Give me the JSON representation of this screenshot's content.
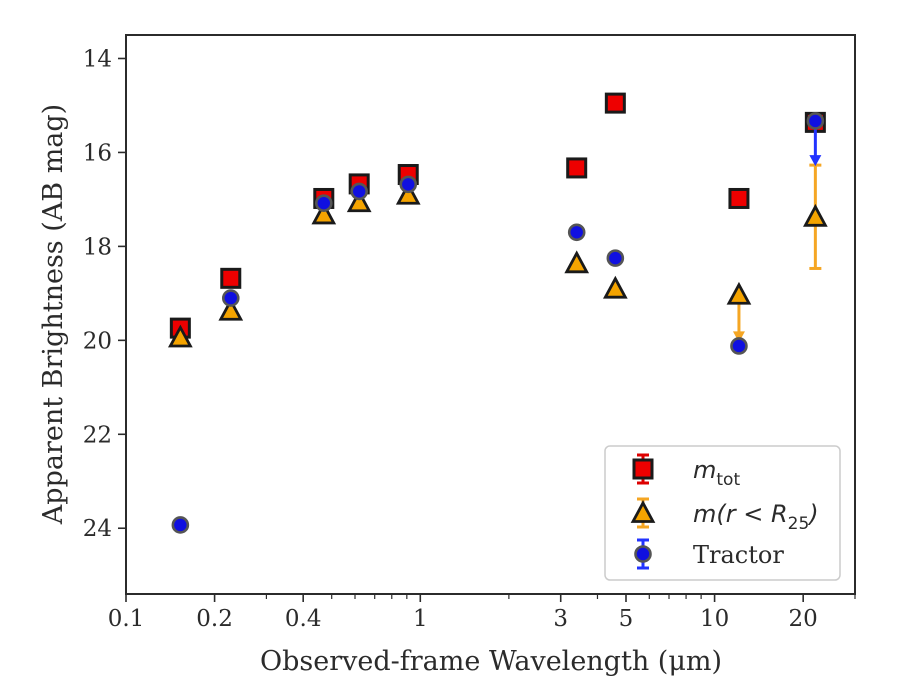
{
  "chart_data": {
    "type": "scatter",
    "xlabel": "Observed-frame Wavelength (μm)",
    "ylabel": "Apparent Brightness (AB mag)",
    "xscale": "log",
    "xlim": [
      0.1,
      30
    ],
    "ylim": [
      25.4,
      13.5
    ],
    "y_inverted": true,
    "xticks": [
      {
        "value": 0.1,
        "label": "0.1"
      },
      {
        "value": 0.2,
        "label": "0.2"
      },
      {
        "value": 0.4,
        "label": "0.4"
      },
      {
        "value": 1,
        "label": "1"
      },
      {
        "value": 3,
        "label": "3"
      },
      {
        "value": 5,
        "label": "5"
      },
      {
        "value": 10,
        "label": "10"
      },
      {
        "value": 20,
        "label": "20"
      }
    ],
    "yticks": [
      {
        "value": 14,
        "label": "14"
      },
      {
        "value": 16,
        "label": "16"
      },
      {
        "value": 18,
        "label": "18"
      },
      {
        "value": 20,
        "label": "20"
      },
      {
        "value": 22,
        "label": "22"
      },
      {
        "value": 24,
        "label": "24"
      }
    ],
    "grid": false,
    "legend_position": "lower-right",
    "series": [
      {
        "name": "m_tot",
        "legend": {
          "italic": "m",
          "sub": "tot"
        },
        "marker": "square",
        "fill": "#ee0000",
        "edge": "#1a1a1a",
        "errcolor": "#dd0000",
        "points": [
          {
            "x": 0.153,
            "y": 19.74,
            "err": 0.1
          },
          {
            "x": 0.227,
            "y": 18.68,
            "err": 0.08
          },
          {
            "x": 0.47,
            "y": 16.98,
            "err": 0.08
          },
          {
            "x": 0.62,
            "y": 16.67,
            "err": 0.08
          },
          {
            "x": 0.91,
            "y": 16.47,
            "err": 0.1
          },
          {
            "x": 3.4,
            "y": 16.33,
            "err": 0.05
          },
          {
            "x": 4.6,
            "y": 14.95,
            "err": 0.05
          },
          {
            "x": 12.1,
            "y": 16.98,
            "err": 0.05
          },
          {
            "x": 22.0,
            "y": 15.36,
            "err": 0.05
          }
        ]
      },
      {
        "name": "m(r < R_25)",
        "legend": {
          "prefix": "m(r < R",
          "sub": "25",
          "suffix": ")"
        },
        "marker": "triangle",
        "fill": "#f5a400",
        "edge": "#1a1a1a",
        "errcolor": "#f5a623",
        "points": [
          {
            "x": 0.153,
            "y": 19.94,
            "err": 0.0
          },
          {
            "x": 0.227,
            "y": 19.37,
            "err": 0.0
          },
          {
            "x": 0.47,
            "y": 17.32,
            "err": 0.0
          },
          {
            "x": 0.62,
            "y": 17.06,
            "err": 0.0
          },
          {
            "x": 0.91,
            "y": 16.9,
            "err": 0.0
          },
          {
            "x": 3.4,
            "y": 18.36,
            "err": 0.0
          },
          {
            "x": 4.6,
            "y": 18.9,
            "err": 0.0
          },
          {
            "x": 12.1,
            "y": 19.03,
            "err": 0.0,
            "limit_to": 20.0
          },
          {
            "x": 22.0,
            "y": 17.37,
            "err_low": 1.1,
            "err_high": 1.1
          }
        ]
      },
      {
        "name": "Tractor",
        "legend": {
          "text": "Tractor"
        },
        "marker": "circle",
        "fill": "#1010e0",
        "edge": "#555555",
        "errcolor": "#2233ff",
        "points": [
          {
            "x": 0.153,
            "y": 23.93,
            "err": 0.05
          },
          {
            "x": 0.227,
            "y": 19.1,
            "err": 0.08
          },
          {
            "x": 0.47,
            "y": 17.08,
            "err": 0.08
          },
          {
            "x": 0.62,
            "y": 16.83,
            "err": 0.08
          },
          {
            "x": 0.91,
            "y": 16.68,
            "err": 0.08
          },
          {
            "x": 3.4,
            "y": 17.7,
            "err": 0.05
          },
          {
            "x": 4.6,
            "y": 18.25,
            "err": 0.05
          },
          {
            "x": 12.1,
            "y": 20.12,
            "err": 0.05
          },
          {
            "x": 22.0,
            "y": 15.33,
            "err": 0.05,
            "limit_to": 16.25
          }
        ]
      }
    ]
  }
}
